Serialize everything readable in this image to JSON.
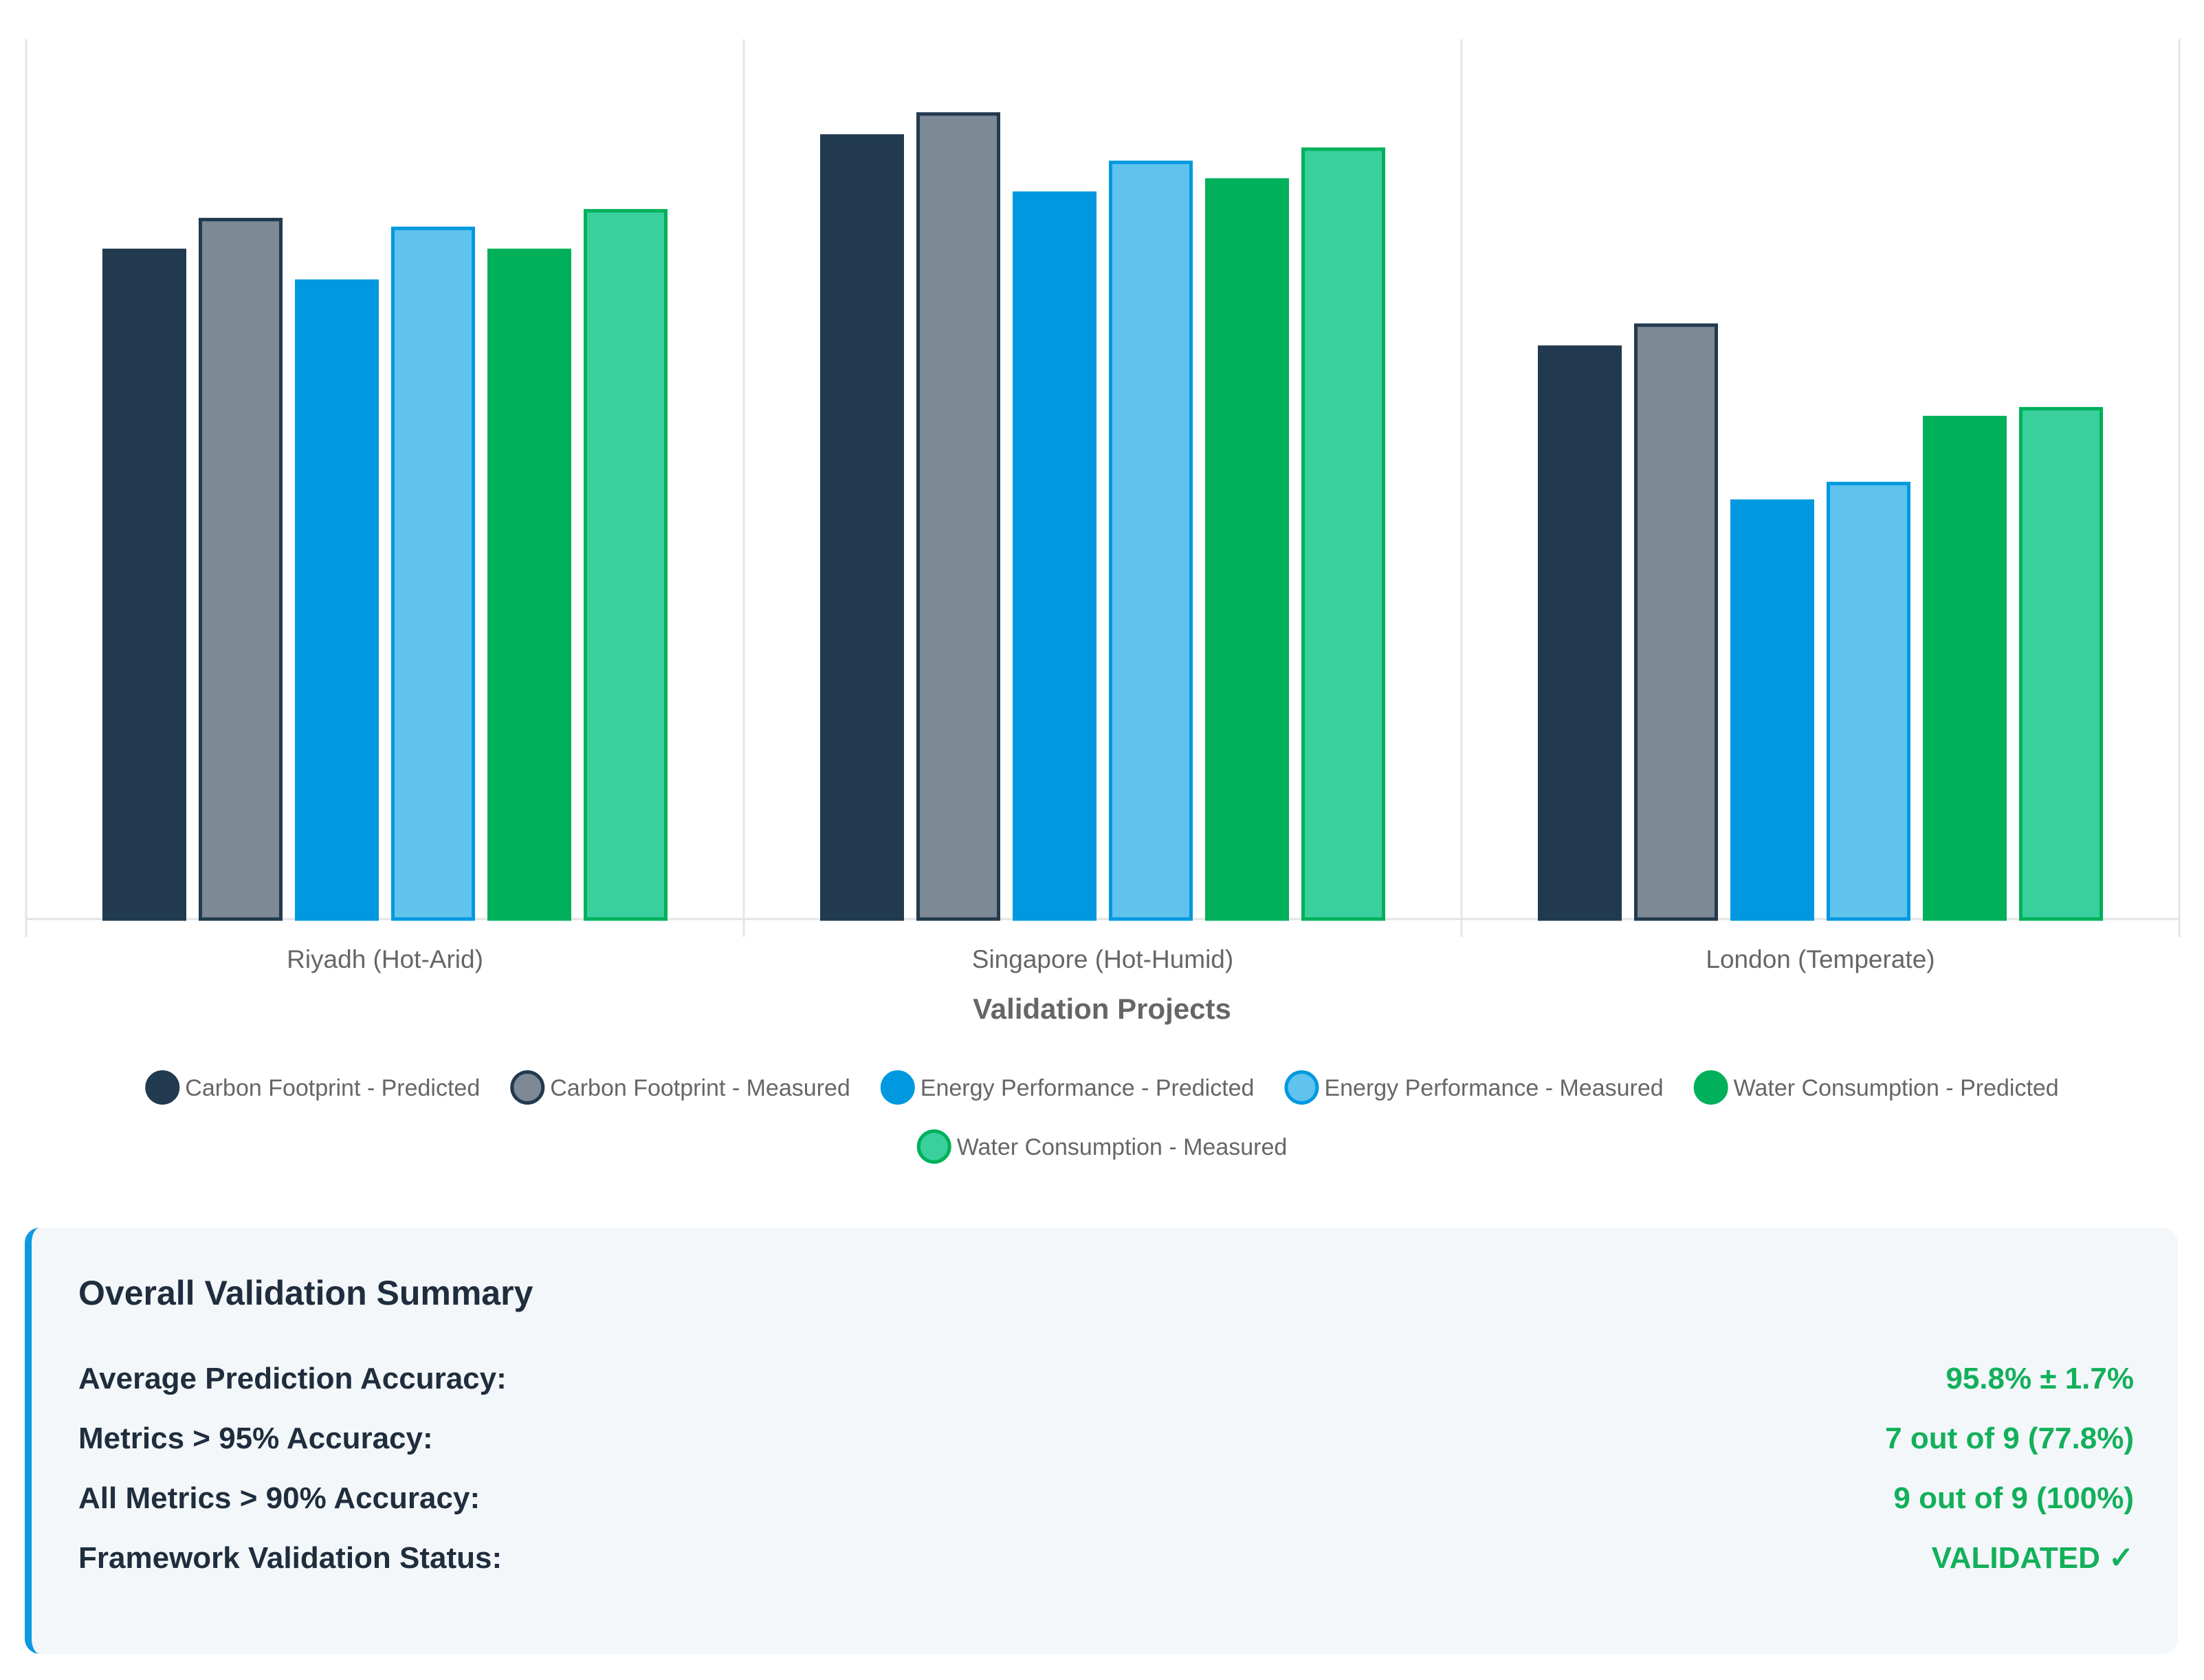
{
  "chart_data": {
    "type": "bar",
    "title": "",
    "xlabel": "Validation Projects",
    "ylabel": "",
    "ylim": [
      0,
      100
    ],
    "y_axis_visible": false,
    "grid": "vertical separators between categories",
    "legend_position": "bottom",
    "categories": [
      "Riyadh (Hot-Arid)",
      "Singapore (Hot-Humid)",
      "London (Temperate)"
    ],
    "series": [
      {
        "name": "Carbon Footprint - Predicted",
        "values": [
          76,
          89,
          65
        ],
        "fill": "#213a4f",
        "stroke": "#213a4f"
      },
      {
        "name": "Carbon Footprint - Measured",
        "values": [
          79.5,
          91.5,
          67.5
        ],
        "fill": "#7d8994",
        "stroke": "#213a4f"
      },
      {
        "name": "Energy Performance - Predicted",
        "values": [
          72.5,
          82.5,
          47.5
        ],
        "fill": "#0099e0",
        "stroke": "#0099e0"
      },
      {
        "name": "Energy Performance - Measured",
        "values": [
          78.5,
          86,
          49.5
        ],
        "fill": "#5fc3ee",
        "stroke": "#0099e0"
      },
      {
        "name": "Water Consumption - Predicted",
        "values": [
          76,
          84,
          57
        ],
        "fill": "#00b05a",
        "stroke": "#00b05a"
      },
      {
        "name": "Water Consumption - Measured",
        "values": [
          80.5,
          87.5,
          58
        ],
        "fill": "#39d09d",
        "stroke": "#00b05a"
      }
    ]
  },
  "summary": {
    "title": "Overall Validation Summary",
    "rows": [
      {
        "label": "Average Prediction Accuracy:",
        "value": "95.8% ± 1.7%"
      },
      {
        "label": "Metrics > 95% Accuracy:",
        "value": "7 out of 9 (77.8%)"
      },
      {
        "label": "All Metrics > 90% Accuracy:",
        "value": "9 out of 9 (100%)"
      },
      {
        "label": "Framework Validation Status:",
        "value": "VALIDATED ✓"
      }
    ],
    "accent_color": "#0b9ae0",
    "value_color": "#12b05a"
  }
}
